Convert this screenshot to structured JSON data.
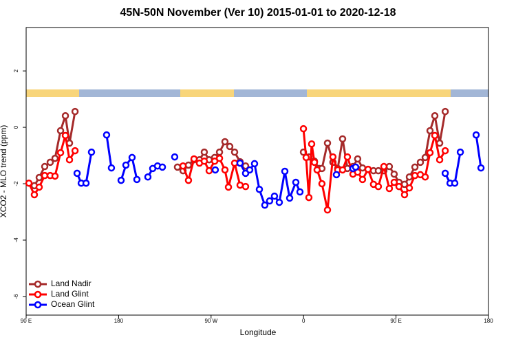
{
  "chart_data": {
    "type": "line",
    "title": "45N-50N November (Ver 10)   2015-01-01 to 2020-12-18",
    "x_label": "Longitude",
    "y_label": "XCO2 - MLO trend (ppm)",
    "xlim": [
      90,
      540
    ],
    "ylim": [
      -6.66,
      3.54
    ],
    "xticks": [
      {
        "value": 90,
        "label": "90 E"
      },
      180,
      {
        "value": 270,
        "label": "90 W"
      },
      {
        "value": 360,
        "label": "0"
      },
      {
        "value": 450,
        "label": "90 E"
      },
      {
        "value": 540,
        "label": "180"
      }
    ],
    "yticks": [
      -6,
      -4,
      -2,
      0,
      2
    ],
    "legend": "bottomleft",
    "series": [
      {
        "name": "Land Nadir",
        "color": "#a52a2a",
        "x": [
          98.0,
          102.7,
          108.1,
          113.4,
          118.1,
          123.5,
          128.2,
          132.2,
          137.6,
          null,
          237.3,
          242.7,
          248.0,
          253.4,
          258.7,
          263.4,
          268.1,
          273.5,
          278.2,
          283.5,
          288.2,
          292.9,
          298.2,
          303.6,
          null,
          359.9,
          365.2,
          370.6,
          375.2,
          377.9,
          383.3,
          388.6,
          393.3,
          398.0,
          402.7,
          408.1,
          412.7,
          417.4,
          422.8,
          428.1,
          432.8,
          438.2,
          443.5,
          448.2,
          452.9,
          458.3,
          463.0,
          468.4,
          473.7,
          478.4,
          483.1,
          487.8,
          492.5,
          497.9
        ],
        "values": [
          -2.07,
          -1.78,
          -1.39,
          -1.24,
          -1.1,
          -0.12,
          0.41,
          -0.56,
          0.56,
          null,
          -1.41,
          -1.54,
          -1.34,
          -1.15,
          -1.15,
          -0.88,
          -1.15,
          -1.07,
          -0.88,
          -0.51,
          -0.68,
          -0.88,
          -1.22,
          -1.37,
          null,
          -0.88,
          -1.05,
          -1.2,
          -1.46,
          -1.46,
          -0.56,
          -1.24,
          -1.46,
          -0.41,
          -1.46,
          -1.39,
          -1.12,
          -1.44,
          -1.49,
          -1.54,
          -1.54,
          -1.54,
          -1.39,
          -1.66,
          -1.95,
          -2.02,
          -1.76,
          -1.41,
          -1.24,
          -1.07,
          -0.12,
          0.41,
          -0.56,
          0.56
        ]
      },
      {
        "name": "Land Glint",
        "color": "#ff0000",
        "x": [
          92.7,
          98.0,
          102.7,
          108.1,
          113.4,
          118.1,
          123.5,
          128.2,
          132.2,
          137.6,
          null,
          242.7,
          248.0,
          253.4,
          258.7,
          263.4,
          268.1,
          273.5,
          278.2,
          283.5,
          286.9,
          292.9,
          298.2,
          303.6,
          null,
          359.9,
          362.5,
          365.2,
          367.9,
          370.6,
          373.2,
          377.9,
          383.3,
          388.6,
          393.3,
          398.0,
          402.7,
          408.1,
          412.7,
          417.4,
          422.8,
          428.1,
          432.8,
          438.2,
          443.5,
          448.2,
          452.9,
          458.3,
          463.0,
          468.4,
          473.7,
          478.4,
          483.1,
          487.8,
          492.5,
          497.9
        ],
        "values": [
          -1.98,
          -2.39,
          -2.12,
          -1.71,
          -1.71,
          -1.73,
          -0.9,
          -0.29,
          -1.15,
          -0.83,
          null,
          -1.37,
          -1.88,
          -1.12,
          -1.27,
          -1.2,
          -1.54,
          -1.2,
          -1.1,
          -1.51,
          -2.12,
          -1.27,
          -2.05,
          -2.1,
          null,
          -0.05,
          -1.07,
          -2.49,
          -0.59,
          -1.24,
          -1.51,
          -2.0,
          -2.93,
          -1.05,
          -1.51,
          -1.51,
          -1.05,
          -1.66,
          -1.59,
          -1.85,
          -1.49,
          -2.02,
          -2.1,
          -1.39,
          -2.17,
          -1.95,
          -2.1,
          -2.39,
          -2.15,
          -1.71,
          -1.68,
          -1.76,
          -0.9,
          -0.29,
          -1.15,
          -0.83
        ]
      },
      {
        "name": "Ocean Glint",
        "color": "#0000ff",
        "x": [
          139.6,
          143.6,
          148.3,
          153.6,
          null,
          168.3,
          173.0,
          null,
          182.4,
          187.1,
          193.1,
          197.8,
          null,
          208.5,
          213.2,
          217.9,
          222.6,
          null,
          234.6,
          null,
          274.1,
          null,
          298.2,
          303.6,
          307.6,
          312.3,
          317.0,
          322.3,
          327.0,
          331.7,
          336.4,
          341.8,
          346.5,
          352.5,
          356.5,
          null,
          392.0,
          null,
          408.1,
          410.7,
          null,
          497.9,
          502.6,
          507.2,
          512.6,
          null,
          528.0,
          532.7
        ],
        "values": [
          -1.63,
          -1.98,
          -1.98,
          -0.88,
          null,
          -0.27,
          -1.44,
          null,
          -1.88,
          -1.34,
          -1.07,
          -1.85,
          null,
          -1.76,
          -1.46,
          -1.37,
          -1.41,
          null,
          -1.05,
          null,
          -1.51,
          null,
          -1.27,
          -1.63,
          -1.51,
          -1.29,
          -2.2,
          -2.76,
          -2.61,
          -2.44,
          -2.66,
          -1.56,
          -2.51,
          -1.95,
          -2.29,
          null,
          -1.68,
          null,
          -1.46,
          -1.41,
          null,
          -1.63,
          -1.98,
          -1.98,
          -0.88,
          null,
          -0.27,
          -1.44
        ]
      }
    ]
  }
}
